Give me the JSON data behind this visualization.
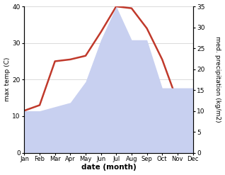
{
  "months": [
    "Jan",
    "Feb",
    "Mar",
    "Apr",
    "May",
    "Jun",
    "Jul",
    "Aug",
    "Sep",
    "Oct",
    "Nov",
    "Dec"
  ],
  "max_temp": [
    11.5,
    13.0,
    25.0,
    25.5,
    26.5,
    33.0,
    40.0,
    39.5,
    34.0,
    25.5,
    14.0,
    16.0
  ],
  "precipitation": [
    10.0,
    10.0,
    11.0,
    12.0,
    17.0,
    27.0,
    35.0,
    27.0,
    27.0,
    15.5,
    15.5,
    15.5
  ],
  "temp_color": "#c0392b",
  "precip_fill_color": "#c8d0f0",
  "temp_ylim": [
    0,
    40
  ],
  "precip_ylim": [
    0,
    35
  ],
  "temp_yticks": [
    0,
    10,
    20,
    30,
    40
  ],
  "precip_yticks": [
    0,
    5,
    10,
    15,
    20,
    25,
    30,
    35
  ],
  "xlabel": "date (month)",
  "ylabel_left": "max temp (C)",
  "ylabel_right": "med. precipitation (kg/m2)",
  "background_color": "#ffffff",
  "line_width": 1.8,
  "grid_color": "#cccccc"
}
